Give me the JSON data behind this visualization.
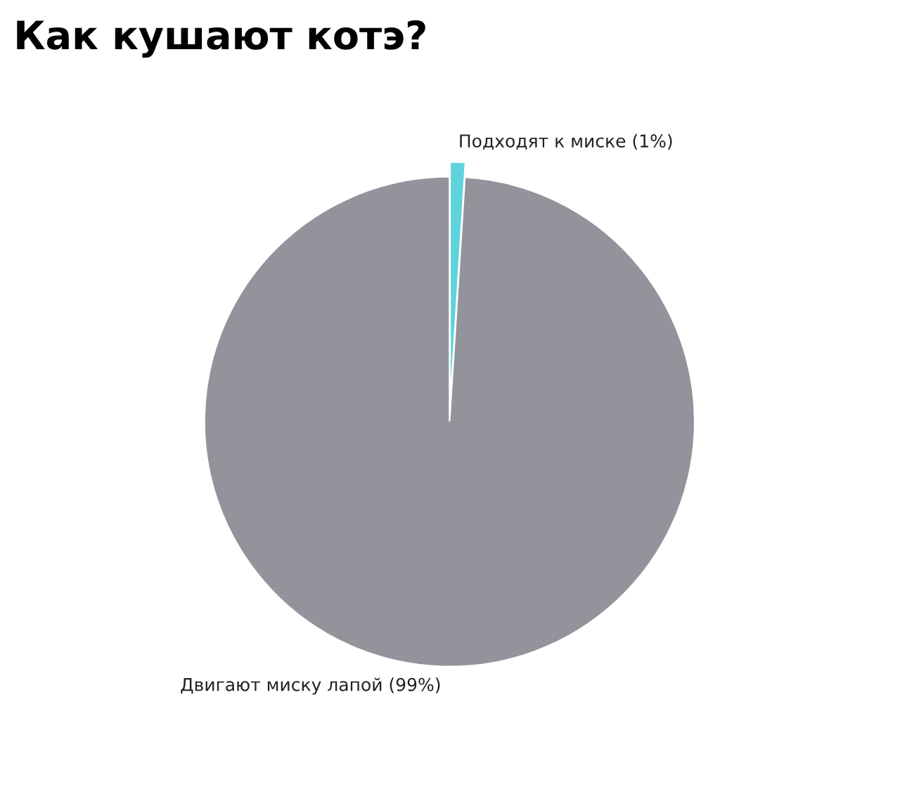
{
  "chart_data": {
    "type": "pie",
    "title": "Как кушают котэ?",
    "categories": [
      "Подходят к миске (1%)",
      "Двигают миску лапой (99%)"
    ],
    "values": [
      1,
      99
    ],
    "colors": [
      "#5fd3dc",
      "#93939b"
    ]
  }
}
